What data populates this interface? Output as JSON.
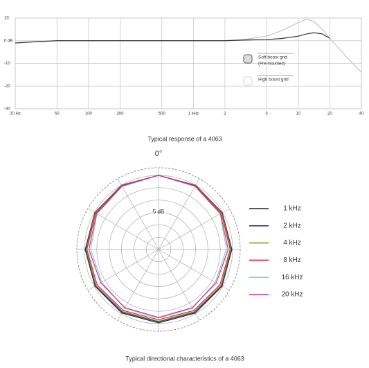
{
  "chart_data": [
    {
      "type": "line",
      "title": "Typical response of a 4063",
      "xlog": true,
      "grid": true,
      "x": [
        20,
        30,
        50,
        100,
        200,
        500,
        1000,
        2000,
        3000,
        5000,
        7000,
        10000,
        12000,
        14000,
        17000,
        20000,
        30000,
        40000
      ],
      "xlim": [
        20,
        40000
      ],
      "xticks": [
        {
          "value": 20,
          "label": "20 Hz"
        },
        50,
        100,
        200,
        500,
        {
          "value": 1000,
          "label": "1 kHz"
        },
        {
          "value": 2000,
          "label": "2"
        },
        {
          "value": 5000,
          "label": "5"
        },
        {
          "value": 10000,
          "label": "10"
        },
        {
          "value": 20000,
          "label": "20"
        },
        {
          "value": 40000,
          "label": "40"
        }
      ],
      "ylim": [
        -30,
        10
      ],
      "yticks": [
        -30,
        -20,
        -10,
        {
          "value": 0,
          "label": "0 dB"
        },
        10
      ],
      "series": [
        {
          "name": "High boost grid",
          "color": "#c4c4c4",
          "values": [
            -1,
            -0.5,
            0,
            0,
            0,
            0,
            0,
            0,
            0.5,
            2,
            4.5,
            8,
            9.5,
            8.5,
            5,
            1,
            -8,
            -14
          ]
        },
        {
          "name": "Soft boost grid",
          "sublabel": "(Pre-mounted)",
          "color": "#333333",
          "values": [
            -1,
            -0.5,
            0,
            0,
            0,
            0,
            0,
            0,
            0.3,
            0.5,
            1,
            2,
            3,
            3.5,
            3,
            1,
            null,
            null
          ]
        }
      ]
    },
    {
      "type": "polar",
      "title": "Typical directional characteristics of a 4063",
      "zero_label": "0°",
      "annotation": "5 dB",
      "legend": "right",
      "theta": [
        0,
        30,
        60,
        90,
        120,
        150,
        180,
        210,
        240,
        270,
        300,
        330,
        360
      ],
      "rlim": [
        -30,
        0
      ],
      "rticks": [
        -25,
        -20,
        -15,
        -10,
        -5,
        0
      ],
      "series": [
        {
          "name": "1 kHz",
          "color": "#222222",
          "values": [
            0,
            0,
            -0.2,
            -0.3,
            -0.3,
            -0.3,
            -0.3,
            -0.3,
            -0.3,
            -0.3,
            -0.2,
            0,
            0
          ]
        },
        {
          "name": "2 kHz",
          "color": "#3e3591",
          "values": [
            0,
            0,
            -0.3,
            -0.5,
            -0.5,
            -0.7,
            -0.7,
            -0.7,
            -0.5,
            -0.5,
            -0.3,
            0,
            0
          ]
        },
        {
          "name": "4 kHz",
          "color": "#7d9b2c",
          "values": [
            0,
            -0.1,
            -0.4,
            -0.7,
            -0.8,
            -1,
            -1,
            -1,
            -0.8,
            -0.7,
            -0.4,
            -0.1,
            0
          ]
        },
        {
          "name": "8 kHz",
          "color": "#e2262b",
          "values": [
            0,
            -0.2,
            -0.6,
            -1,
            -1.3,
            -1.5,
            -1.6,
            -1.5,
            -1.3,
            -1,
            -0.6,
            -0.2,
            0
          ]
        },
        {
          "name": "16 kHz",
          "color": "#82cbe6",
          "values": [
            0,
            -0.5,
            -1.2,
            -2.5,
            -3.5,
            -2.5,
            -2.3,
            -2.5,
            -3.5,
            -2.5,
            -1.2,
            -0.5,
            0
          ]
        },
        {
          "name": "20 kHz",
          "color": "#c5367f",
          "values": [
            0,
            -0.4,
            -1,
            -1.8,
            -3,
            -2.8,
            -2.5,
            -2.8,
            -3,
            -1.8,
            -1,
            -0.4,
            0
          ]
        }
      ]
    }
  ]
}
